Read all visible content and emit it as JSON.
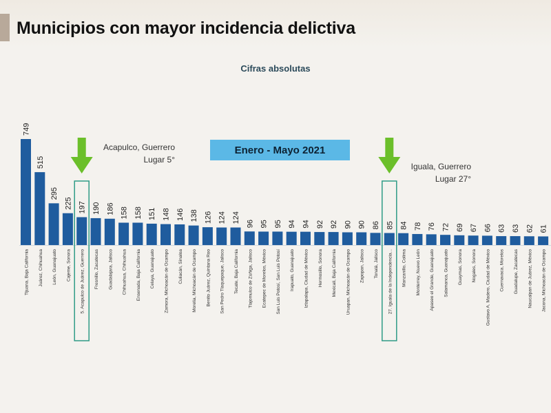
{
  "header": {
    "title": "Municipios con mayor incidencia delictiva",
    "subtitle": "Cifras absolutas",
    "period": "Enero - Mayo 2021"
  },
  "annotations": [
    {
      "line1": "Acapulco, Guerrero",
      "line2": "Lugar 5°"
    },
    {
      "line1": "Iguala, Guerrero",
      "line2": "Lugar 27°"
    }
  ],
  "colors": {
    "bar": "#1f5c9e",
    "highlight_box": "#2e9b86",
    "arrow": "#6bbf2a",
    "badge": "#5bb8e6"
  },
  "chart_data": {
    "type": "bar",
    "title": "Municipios con mayor incidencia delictiva",
    "subtitle": "Cifras absolutas",
    "categories": [
      "Tijuana, Baja California",
      "Juárez, Chihuahua",
      "León, Guanajuato",
      "Cajeme, Sonora",
      "5. Acapulco de Juárez, Guerrero",
      "Fresnillo, Zacatecas",
      "Guadalajara, Jalisco",
      "Chihuahua, Chihuahua",
      "Ensenada, Baja California",
      "Celaya, Guanajuato",
      "Zamora, Michoacán de Ocampo",
      "Culiacán, Sinaloa",
      "Morelia, Michoacán de Ocampo",
      "Benito Juárez, Quintana Roo",
      "San Pedro Tlaquepaque, Jalisco",
      "Tecate, Baja California",
      "Tlajomulco de Zúñiga, Jalisco",
      "Ecatepec de Morelos, México",
      "San Luis Potosí, San Luis Potosí",
      "Irapuato, Guanajuato",
      "Iztapalapa, Ciudad de México",
      "Hermosillo, Sonora",
      "Mexicali, Baja California",
      "Uruapan, Michoacán de Ocampo",
      "Zapopan, Jalisco",
      "Tonalá, Jalisco",
      "27. Iguala de la Independencia...",
      "Manzanillo, Colima",
      "Monterrey, Nuevo León",
      "Apaseo el Grande, Guanajuato",
      "Salamanca, Guanajuato",
      "Guaymas, Sonora",
      "Nogales, Sonora",
      "Gustavo A. Madero, Ciudad de México",
      "Cuernavaca, Morelos",
      "Guadalupe, Zacatecas",
      "Naucalpan de Juárez, México",
      "Jacona, Michoacán de Ocampo"
    ],
    "values": [
      749,
      515,
      295,
      225,
      197,
      190,
      186,
      158,
      158,
      151,
      148,
      146,
      138,
      126,
      124,
      124,
      96,
      95,
      95,
      94,
      94,
      92,
      92,
      90,
      90,
      86,
      85,
      84,
      78,
      76,
      72,
      69,
      67,
      66,
      63,
      63,
      62,
      61
    ],
    "highlighted": [
      4,
      26
    ],
    "ylim": [
      0,
      760
    ],
    "xlabel": "",
    "ylabel": "",
    "grid": false,
    "legend": "none"
  }
}
